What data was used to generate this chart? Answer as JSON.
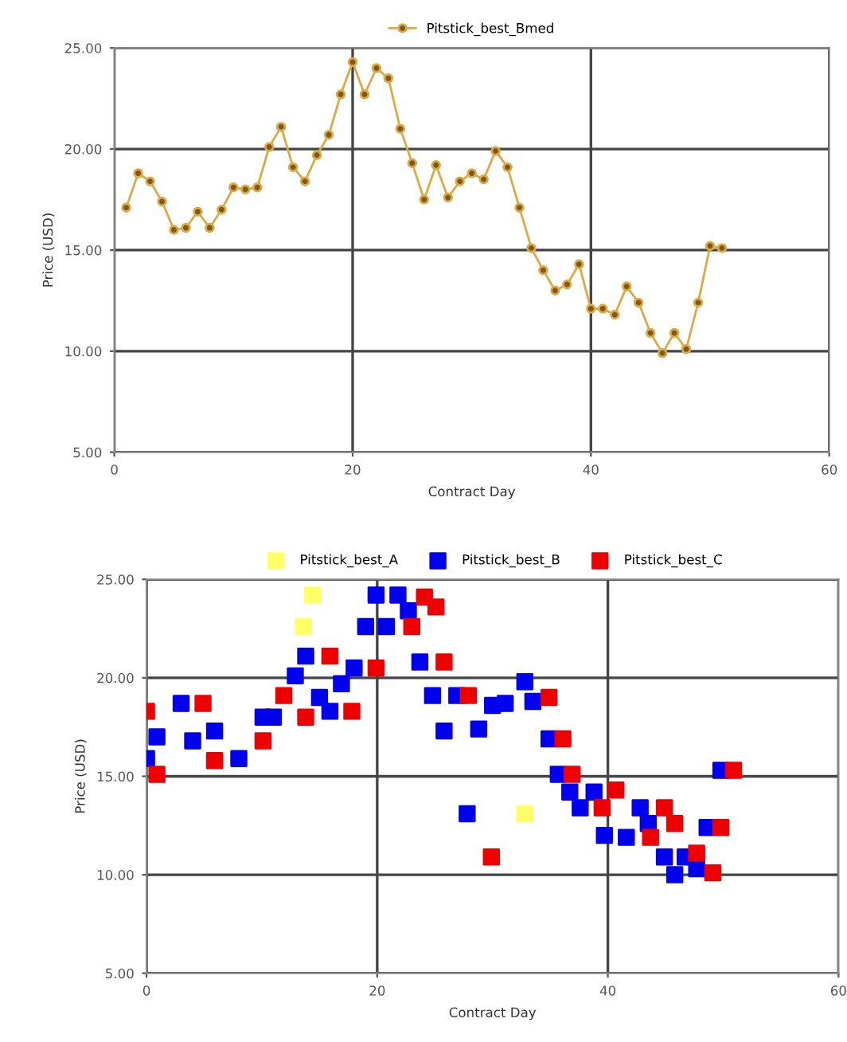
{
  "chart_data": [
    {
      "type": "line",
      "xlabel": "Contract Day",
      "ylabel": "Price (USD)",
      "legend": "top",
      "grid": true,
      "marker": "circle",
      "line_style": "solid",
      "xlim": [
        0,
        60
      ],
      "xticks": [
        0,
        20,
        40,
        60
      ],
      "ylim": [
        5,
        25
      ],
      "yticks": [
        {
          "value": 5,
          "label": "5.00"
        },
        {
          "value": 10,
          "label": "10.00"
        },
        {
          "value": 15,
          "label": "15.00"
        },
        {
          "value": 20,
          "label": "20.00"
        },
        {
          "value": 25,
          "label": "25.00"
        }
      ],
      "series": [
        {
          "name": "Pitstick_best_Bmed",
          "color": "#e0a842",
          "x": [
            1,
            2,
            3,
            4,
            5,
            6,
            7,
            8,
            9,
            10,
            11,
            12,
            13,
            14,
            15,
            16,
            17,
            18,
            19,
            20,
            21,
            22,
            23,
            24,
            25,
            26,
            27,
            28,
            29,
            30,
            31,
            32,
            33,
            34,
            35,
            36,
            37,
            38,
            39,
            40,
            41,
            42,
            43,
            44,
            45,
            46,
            47,
            48,
            49,
            50,
            51
          ],
          "values": [
            17.1,
            18.8,
            18.4,
            17.4,
            16.0,
            16.1,
            16.9,
            16.1,
            17.0,
            18.1,
            18.0,
            18.1,
            20.1,
            21.1,
            19.1,
            18.4,
            19.7,
            20.7,
            22.7,
            24.3,
            22.7,
            24.0,
            23.5,
            21.0,
            19.3,
            17.5,
            19.2,
            17.6,
            18.4,
            18.8,
            18.5,
            19.9,
            19.1,
            17.1,
            15.1,
            14.0,
            13.0,
            13.3,
            14.3,
            12.1,
            12.1,
            11.8,
            13.2,
            12.4,
            10.9,
            9.9,
            10.9,
            10.1,
            12.4,
            15.2,
            15.1
          ]
        }
      ]
    },
    {
      "type": "scatter",
      "xlabel": "Contract Day",
      "ylabel": "Price (USD)",
      "legend": "top",
      "grid": true,
      "marker": "square",
      "xlim": [
        0,
        60
      ],
      "xticks": [
        0,
        20,
        40,
        60
      ],
      "ylim": [
        5,
        25
      ],
      "yticks": [
        {
          "value": 5,
          "label": "5.00"
        },
        {
          "value": 10,
          "label": "10.00"
        },
        {
          "value": 15,
          "label": "15.00"
        },
        {
          "value": 20,
          "label": "20.00"
        },
        {
          "value": 25,
          "label": "25.00"
        }
      ],
      "series": [
        {
          "name": "Pitstick_best_A",
          "color": "#ffff66",
          "x": [
            13.6,
            14.4,
            32.8
          ],
          "values": [
            22.6,
            24.2,
            13.1
          ]
        },
        {
          "name": "Pitstick_best_B",
          "color": "#0000ee",
          "x": [
            0,
            0.9,
            3,
            4,
            5.9,
            6.6,
            8,
            9.1,
            10.1,
            11,
            12.9,
            13.8,
            15,
            15.9,
            16.9,
            18,
            19,
            19.9,
            20.8,
            21.8,
            22.7,
            23.7,
            24.8,
            25.8,
            26.9,
            27.8,
            28.8,
            30,
            31.1,
            32.8,
            33.5,
            34.9,
            35.7,
            36.7,
            37.6,
            38.8,
            39.7,
            41.6,
            42.8,
            43.5,
            44.9,
            45.8,
            46.7,
            47.7,
            48.6,
            49.8
          ],
          "values": [
            15.9,
            17.0,
            18.7,
            16.8,
            17.3,
            null,
            15.9,
            null,
            18.0,
            18.0,
            20.1,
            21.1,
            19.0,
            18.3,
            19.7,
            20.5,
            22.6,
            24.2,
            22.6,
            24.2,
            23.4,
            20.8,
            19.1,
            17.3,
            19.1,
            13.1,
            17.4,
            18.6,
            18.7,
            19.8,
            18.8,
            16.9,
            15.1,
            14.2,
            13.4,
            14.2,
            12.0,
            11.9,
            13.4,
            12.6,
            10.9,
            10.0,
            10.9,
            10.3,
            12.4,
            15.3
          ]
        },
        {
          "name": "Pitstick_best_C",
          "color": "#ee0000",
          "x": [
            0,
            0.9,
            4.9,
            5.9,
            9.4,
            10.1,
            11.9,
            13.8,
            15.9,
            17.8,
            19.9,
            23,
            24.1,
            25.1,
            25.8,
            27.9,
            29.9,
            34.9,
            36.1,
            36.9,
            39.5,
            40.7,
            43.7,
            44.9,
            45.8,
            47.7,
            49.1,
            49.8,
            50.9
          ],
          "values": [
            18.3,
            15.1,
            18.7,
            15.8,
            null,
            16.8,
            19.1,
            18.0,
            21.1,
            18.3,
            20.5,
            22.6,
            24.1,
            23.6,
            20.8,
            19.1,
            10.9,
            19.0,
            16.9,
            15.1,
            13.4,
            14.3,
            11.9,
            13.4,
            12.6,
            11.1,
            10.1,
            12.4,
            15.3
          ]
        }
      ]
    }
  ]
}
